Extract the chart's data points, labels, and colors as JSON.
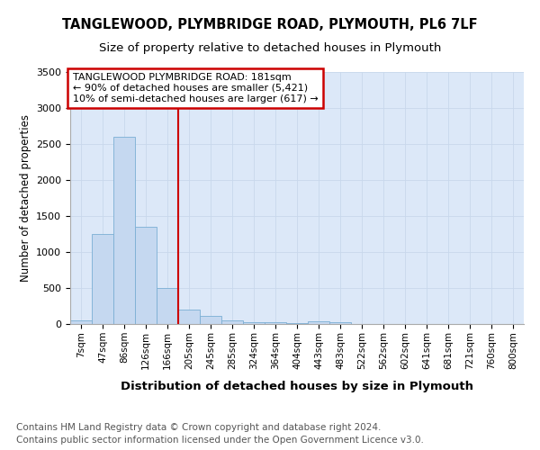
{
  "title1": "TANGLEWOOD, PLYMBRIDGE ROAD, PLYMOUTH, PL6 7LF",
  "title2": "Size of property relative to detached houses in Plymouth",
  "xlabel": "Distribution of detached houses by size in Plymouth",
  "ylabel": "Number of detached properties",
  "footnote_line1": "Contains HM Land Registry data © Crown copyright and database right 2024.",
  "footnote_line2": "Contains public sector information licensed under the Open Government Licence v3.0.",
  "bin_labels": [
    "7sqm",
    "47sqm",
    "86sqm",
    "126sqm",
    "166sqm",
    "205sqm",
    "245sqm",
    "285sqm",
    "324sqm",
    "364sqm",
    "404sqm",
    "443sqm",
    "483sqm",
    "522sqm",
    "562sqm",
    "602sqm",
    "641sqm",
    "681sqm",
    "721sqm",
    "760sqm",
    "800sqm"
  ],
  "bar_values": [
    50,
    1250,
    2600,
    1350,
    500,
    200,
    110,
    50,
    30,
    30,
    8,
    40,
    30,
    0,
    0,
    0,
    0,
    0,
    0,
    0,
    0
  ],
  "bar_color": "#c5d8f0",
  "bar_edge_color": "#7bafd4",
  "red_line_x": 4.5,
  "annotation_label": "TANGLEWOOD PLYMBRIDGE ROAD: 181sqm",
  "annotation_line2": "← 90% of detached houses are smaller (5,421)",
  "annotation_line3": "10% of semi-detached houses are larger (617) →",
  "annotation_box_facecolor": "#ffffff",
  "annotation_box_edgecolor": "#cc0000",
  "ylim": [
    0,
    3500
  ],
  "yticks": [
    0,
    500,
    1000,
    1500,
    2000,
    2500,
    3000,
    3500
  ],
  "grid_color": "#c8d8ec",
  "plot_bg_color": "#dce8f8",
  "fig_bg_color": "#ffffff",
  "title1_fontsize": 10.5,
  "title2_fontsize": 9.5,
  "ylabel_fontsize": 8.5,
  "xlabel_fontsize": 9.5,
  "tick_fontsize": 8,
  "xtick_fontsize": 7.5,
  "footnote_fontsize": 7.5,
  "annotation_fontsize": 8
}
